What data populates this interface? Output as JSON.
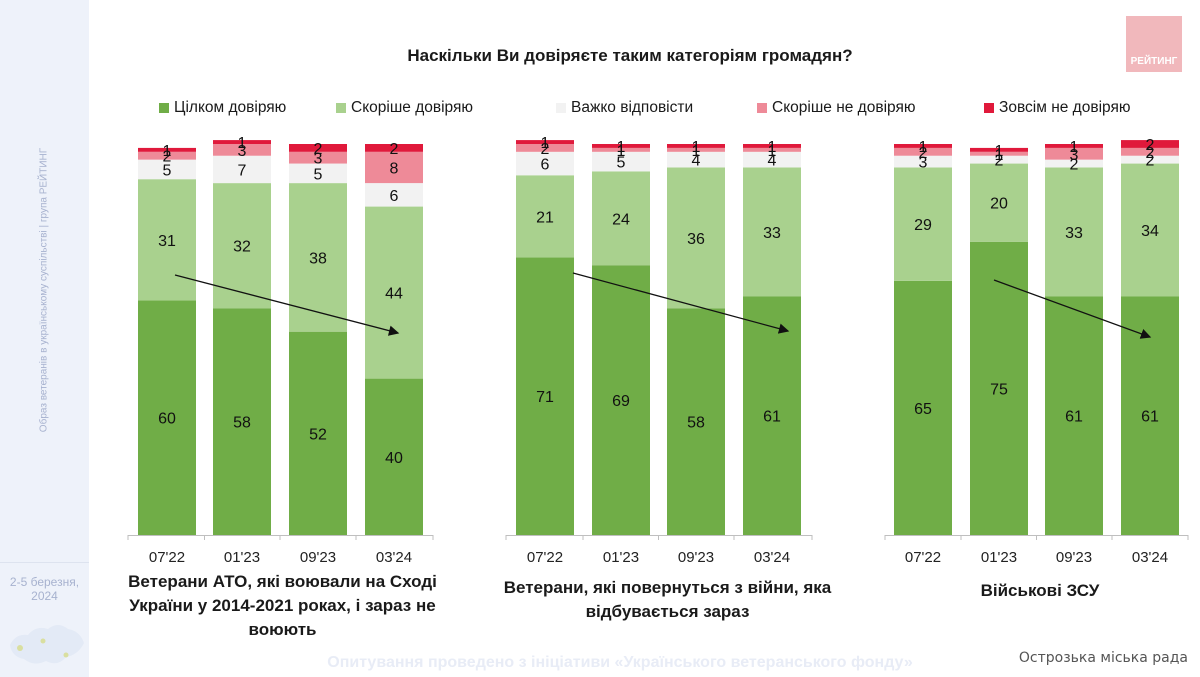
{
  "sidebar": {
    "vertical_text": "Образ ветеранів в українському суспільстві | група РЕЙТИНГ",
    "date_line1": "2-5 березня,",
    "date_line2": "2024"
  },
  "logo": {
    "text": "РЕЙТИНГ",
    "color": "#f1b8bc"
  },
  "footer": {
    "text": "Опитування проведено з ініціативи «Українського ветеранського фонду»"
  },
  "watermark": {
    "text": "Острозька міська рада"
  },
  "chart_data": {
    "type": "bar",
    "stacked": true,
    "title": "Наскільки Ви довіряєте таким категоріям громадян?",
    "legend_position": "top",
    "ylim": [
      0,
      100
    ],
    "units": "%",
    "series_names": [
      "Цілком довіряю",
      "Скоріше довіряю",
      "Важко відповісти",
      "Скоріше не довіряю",
      "Зовсім не довіряю"
    ],
    "colors": [
      "#70ad47",
      "#a9d18e",
      "#f2f2f2",
      "#ee8a98",
      "#e0193b"
    ],
    "groups": [
      {
        "label": "Ветерани АТО, які воювали на Сході України у 2014-2021 роках, і зараз не воюють",
        "label_lines": [
          "Ветерани АТО, які воювали на Сході",
          "України у 2014-2021 роках, і зараз не",
          "воюють"
        ],
        "categories": [
          "07'22",
          "01'23",
          "09'23",
          "03'24"
        ],
        "series": [
          {
            "name": "Цілком довіряю",
            "values": [
              60,
              58,
              52,
              40
            ]
          },
          {
            "name": "Скоріше довіряю",
            "values": [
              31,
              32,
              38,
              44
            ]
          },
          {
            "name": "Важко відповісти",
            "values": [
              5,
              7,
              5,
              6
            ]
          },
          {
            "name": "Скоріше не довіряю",
            "values": [
              2,
              3,
              3,
              8
            ]
          },
          {
            "name": "Зовсім не довіряю",
            "values": [
              1,
              1,
              2,
              2
            ]
          }
        ],
        "trend_arrow": "down"
      },
      {
        "label": "Ветерани, які повернуться з війни, яка відбувається зараз",
        "label_lines": [
          "Ветерани, які повернуться з війни, яка",
          "відбувається зараз"
        ],
        "categories": [
          "07'22",
          "01'23",
          "09'23",
          "03'24"
        ],
        "series": [
          {
            "name": "Цілком довіряю",
            "values": [
              71,
              69,
              58,
              61
            ]
          },
          {
            "name": "Скоріше довіряю",
            "values": [
              21,
              24,
              36,
              33
            ]
          },
          {
            "name": "Важко відповісти",
            "values": [
              6,
              5,
              4,
              4
            ]
          },
          {
            "name": "Скоріше не довіряю",
            "values": [
              2,
              1,
              1,
              1
            ]
          },
          {
            "name": "Зовсім не довіряю",
            "values": [
              1,
              1,
              1,
              1
            ]
          }
        ],
        "trend_arrow": "down"
      },
      {
        "label": "Військові ЗСУ",
        "label_lines": [
          "Військові ЗСУ"
        ],
        "categories": [
          "07'22",
          "01'23",
          "09'23",
          "03'24"
        ],
        "series": [
          {
            "name": "Цілком довіряю",
            "values": [
              65,
              75,
              61,
              61
            ]
          },
          {
            "name": "Скоріше довіряю",
            "values": [
              29,
              20,
              33,
              34
            ]
          },
          {
            "name": "Важко відповісти",
            "values": [
              3,
              2,
              2,
              2
            ]
          },
          {
            "name": "Скоріше не довіряю",
            "values": [
              2,
              1,
              3,
              2
            ]
          },
          {
            "name": "Зовсім не довіряю",
            "values": [
              1,
              1,
              1,
              2
            ]
          }
        ],
        "trend_arrow": "down"
      }
    ]
  }
}
